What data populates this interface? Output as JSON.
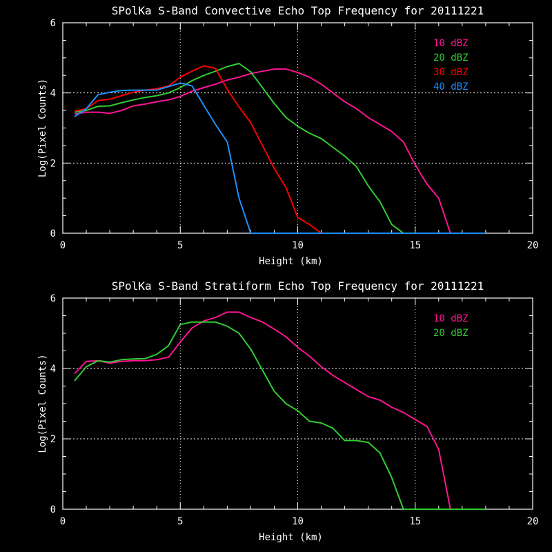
{
  "chart_data": [
    {
      "type": "line",
      "title": "SPolKa S-Band Convective Echo Top Frequency for 20111221",
      "xlabel": "Height (km)",
      "ylabel": "Log(Pixel Counts)",
      "xlim": [
        0,
        20
      ],
      "ylim": [
        0,
        6
      ],
      "xticks": [
        "0",
        "5",
        "10",
        "15",
        "20"
      ],
      "yticks": [
        "0",
        "2",
        "4",
        "6"
      ],
      "grid": "dotted at x=5,10,15 and y=2,4",
      "legend_placement": "top-right",
      "x": [
        0.5,
        1,
        1.5,
        2,
        2.5,
        3,
        3.5,
        4,
        4.5,
        5,
        5.5,
        6,
        6.5,
        7,
        7.5,
        8,
        8.5,
        9,
        9.5,
        10,
        10.5,
        11,
        11.5,
        12,
        12.5,
        13,
        13.5,
        14,
        14.5,
        15,
        15.5,
        16,
        16.5,
        17,
        17.5,
        18
      ],
      "series": [
        {
          "name": "10 dBZ",
          "color": "#ff1493",
          "values": [
            3.4,
            3.45,
            3.45,
            3.42,
            3.5,
            3.63,
            3.68,
            3.75,
            3.8,
            3.9,
            4.05,
            4.15,
            4.25,
            4.37,
            4.45,
            4.55,
            4.62,
            4.68,
            4.68,
            4.58,
            4.45,
            4.25,
            4.0,
            3.75,
            3.55,
            3.3,
            3.1,
            2.9,
            2.6,
            1.95,
            1.4,
            1.0,
            0,
            0,
            0,
            0
          ]
        },
        {
          "name": "20 dBZ",
          "color": "#32cd32",
          "values": [
            3.45,
            3.5,
            3.62,
            3.63,
            3.72,
            3.8,
            3.87,
            3.92,
            4.0,
            4.15,
            4.35,
            4.5,
            4.62,
            4.75,
            4.84,
            4.6,
            4.15,
            3.7,
            3.3,
            3.05,
            2.85,
            2.7,
            2.45,
            2.2,
            1.9,
            1.35,
            0.9,
            0.25,
            0,
            0,
            0,
            0,
            0,
            0,
            0,
            0
          ]
        },
        {
          "name": "30 dBZ",
          "color": "#ff0000",
          "values": [
            3.48,
            3.55,
            3.78,
            3.82,
            3.92,
            4.02,
            4.08,
            4.12,
            4.2,
            4.45,
            4.62,
            4.77,
            4.7,
            4.1,
            3.6,
            3.15,
            2.5,
            1.85,
            1.3,
            0.45,
            0.25,
            0,
            0,
            0,
            0,
            0,
            0,
            0,
            0,
            0,
            0,
            0,
            0,
            0,
            0,
            0
          ]
        },
        {
          "name": "40 dBZ",
          "color": "#1e90ff",
          "values": [
            3.32,
            3.55,
            3.95,
            4.02,
            4.07,
            4.08,
            4.08,
            4.08,
            4.18,
            4.28,
            4.2,
            3.65,
            3.1,
            2.6,
            1.0,
            0,
            0,
            0,
            0,
            0,
            0,
            0,
            0,
            0,
            0,
            0,
            0,
            0,
            0,
            0,
            0,
            0,
            0,
            0,
            0,
            0
          ]
        }
      ]
    },
    {
      "type": "line",
      "title": "SPolKa S-Band Stratiform Echo Top Frequency for 20111221",
      "xlabel": "Height (km)",
      "ylabel": "Log(Pixel Counts)",
      "xlim": [
        0,
        20
      ],
      "ylim": [
        0,
        6
      ],
      "xticks": [
        "0",
        "5",
        "10",
        "15",
        "20"
      ],
      "yticks": [
        "0",
        "2",
        "4",
        "6"
      ],
      "grid": "dotted at x=5,10,15 and y=2,4",
      "legend_placement": "top-right",
      "x": [
        0.5,
        1,
        1.5,
        2,
        2.5,
        3,
        3.5,
        4,
        4.5,
        5,
        5.5,
        6,
        6.5,
        7,
        7.5,
        8,
        8.5,
        9,
        9.5,
        10,
        10.5,
        11,
        11.5,
        12,
        12.5,
        13,
        13.5,
        14,
        14.5,
        15,
        15.5,
        16,
        16.5,
        17,
        17.5,
        18
      ],
      "series": [
        {
          "name": "10 dBZ",
          "color": "#ff1493",
          "values": [
            3.85,
            4.2,
            4.22,
            4.15,
            4.2,
            4.22,
            4.22,
            4.25,
            4.32,
            4.75,
            5.15,
            5.35,
            5.45,
            5.6,
            5.6,
            5.45,
            5.32,
            5.12,
            4.9,
            4.6,
            4.35,
            4.05,
            3.8,
            3.6,
            3.4,
            3.2,
            3.1,
            2.9,
            2.75,
            2.55,
            2.35,
            1.7,
            0,
            0,
            0,
            0
          ]
        },
        {
          "name": "20 dBZ",
          "color": "#32cd32",
          "values": [
            3.65,
            4.05,
            4.22,
            4.18,
            4.25,
            4.27,
            4.28,
            4.4,
            4.65,
            5.25,
            5.32,
            5.32,
            5.32,
            5.2,
            5.0,
            4.55,
            3.95,
            3.35,
            3.0,
            2.8,
            2.5,
            2.45,
            2.3,
            1.95,
            1.95,
            1.9,
            1.6,
            0.9,
            0,
            0,
            0,
            0,
            0,
            0,
            0,
            0
          ]
        }
      ]
    }
  ]
}
